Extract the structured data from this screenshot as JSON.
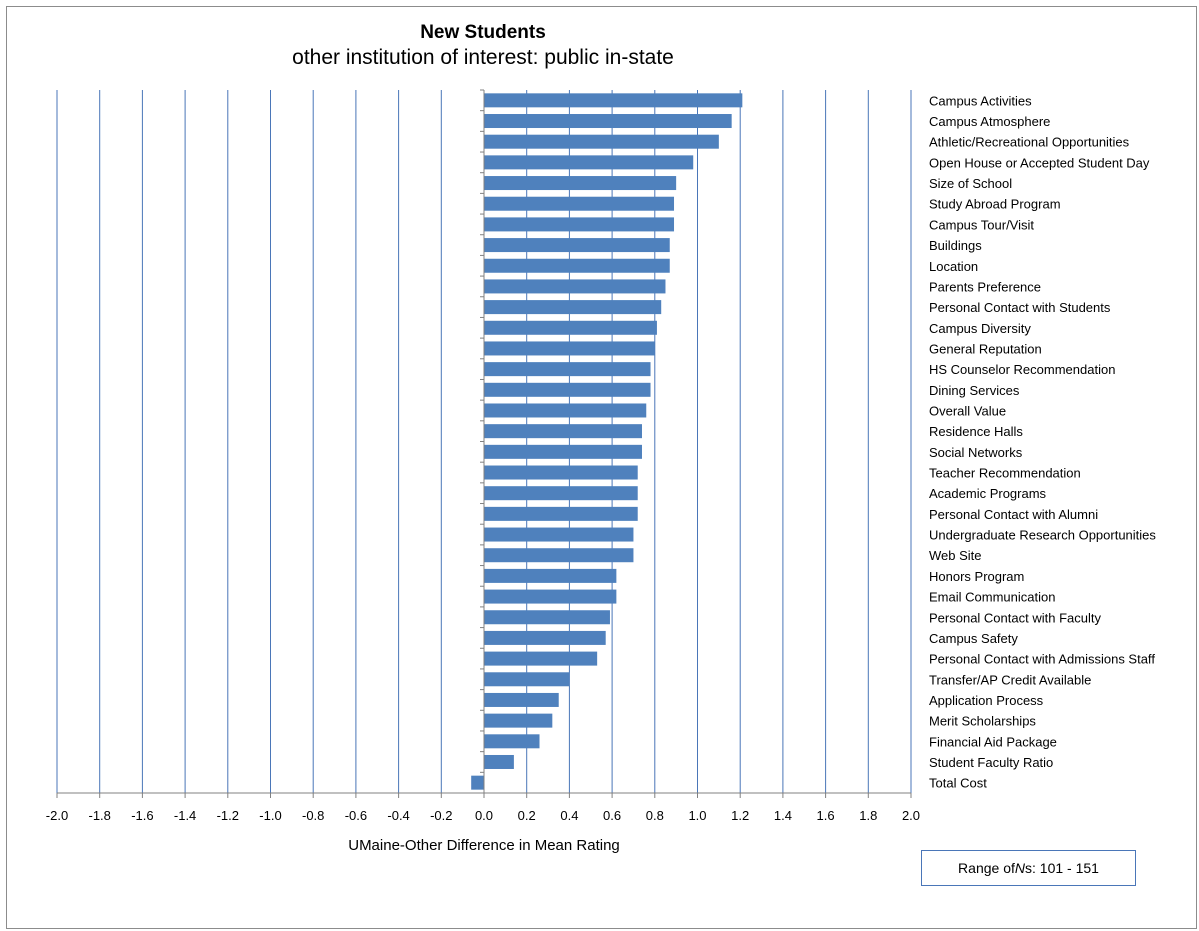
{
  "colors": {
    "bar": "#4f81bd",
    "grid": "#4a76b8",
    "axis": "#808080",
    "text": "#000000"
  },
  "chart_data": {
    "type": "bar",
    "orientation": "horizontal",
    "title": "New Students",
    "subtitle": "other institution of interest: public in-state",
    "xlabel": "UMaine-Other Difference in Mean Rating",
    "xlim": [
      -2.0,
      2.0
    ],
    "xticks": [
      "-2.0",
      "-1.8",
      "-1.6",
      "-1.4",
      "-1.2",
      "-1.0",
      "-0.8",
      "-0.6",
      "-0.4",
      "-0.2",
      "0.0",
      "0.2",
      "0.4",
      "0.6",
      "0.8",
      "1.0",
      "1.2",
      "1.4",
      "1.6",
      "1.8",
      "2.0"
    ],
    "grid": true,
    "categories": [
      "Campus Activities",
      "Campus Atmosphere",
      "Athletic/Recreational Opportunities",
      "Open House or Accepted Student Day",
      "Size of School",
      "Study Abroad Program",
      "Campus Tour/Visit",
      "Buildings",
      "Location",
      "Parents Preference",
      "Personal Contact with Students",
      "Campus Diversity",
      "General Reputation",
      "HS Counselor Recommendation",
      "Dining Services",
      "Overall Value",
      "Residence Halls",
      "Social Networks",
      "Teacher Recommendation",
      "Academic Programs",
      "Personal Contact with Alumni",
      "Undergraduate Research Opportunities",
      "Web Site",
      "Honors Program",
      "Email Communication",
      "Personal Contact with Faculty",
      "Campus Safety",
      "Personal Contact with Admissions Staff",
      "Transfer/AP Credit Available",
      "Application Process",
      "Merit Scholarships",
      "Financial Aid Package",
      "Student Faculty Ratio",
      "Total Cost"
    ],
    "values": [
      1.21,
      1.16,
      1.1,
      0.98,
      0.9,
      0.89,
      0.89,
      0.87,
      0.87,
      0.85,
      0.83,
      0.81,
      0.8,
      0.78,
      0.78,
      0.76,
      0.74,
      0.74,
      0.72,
      0.72,
      0.72,
      0.7,
      0.7,
      0.62,
      0.62,
      0.59,
      0.57,
      0.53,
      0.4,
      0.35,
      0.32,
      0.26,
      0.14,
      -0.06
    ]
  },
  "ns_box": {
    "prefix": "Range of ",
    "n_symbol": "N",
    "n_suffix": "s",
    "value": ":  101 - 151"
  }
}
